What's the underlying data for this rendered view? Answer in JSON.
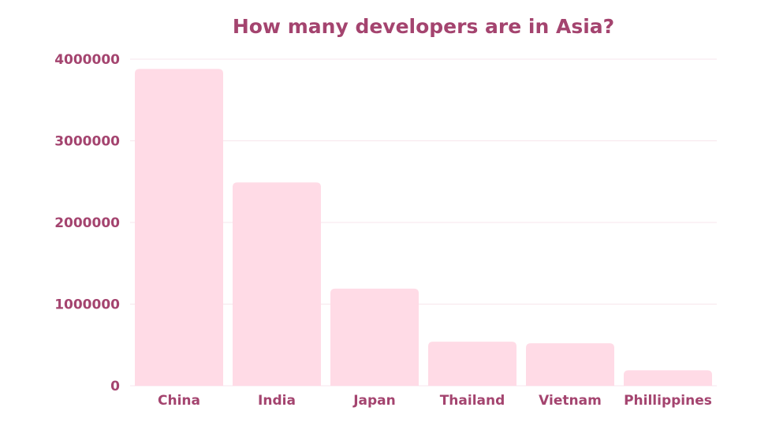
{
  "chart_data": {
    "type": "bar",
    "title": "How many developers are in Asia?",
    "xlabel": "",
    "ylabel": "",
    "categories": [
      "China",
      "India",
      "Japan",
      "Thailand",
      "Vietnam",
      "Phillippines"
    ],
    "values": [
      3880000,
      2490000,
      1190000,
      540000,
      520000,
      190000
    ],
    "ylim": [
      0,
      4000000
    ],
    "yticks": [
      "0",
      "1000000",
      "2000000",
      "3000000",
      "4000000"
    ],
    "grid": true,
    "colors": {
      "bar": "#ffdbe6",
      "text": "#a4446f",
      "grid": "#f7e6ec"
    }
  }
}
